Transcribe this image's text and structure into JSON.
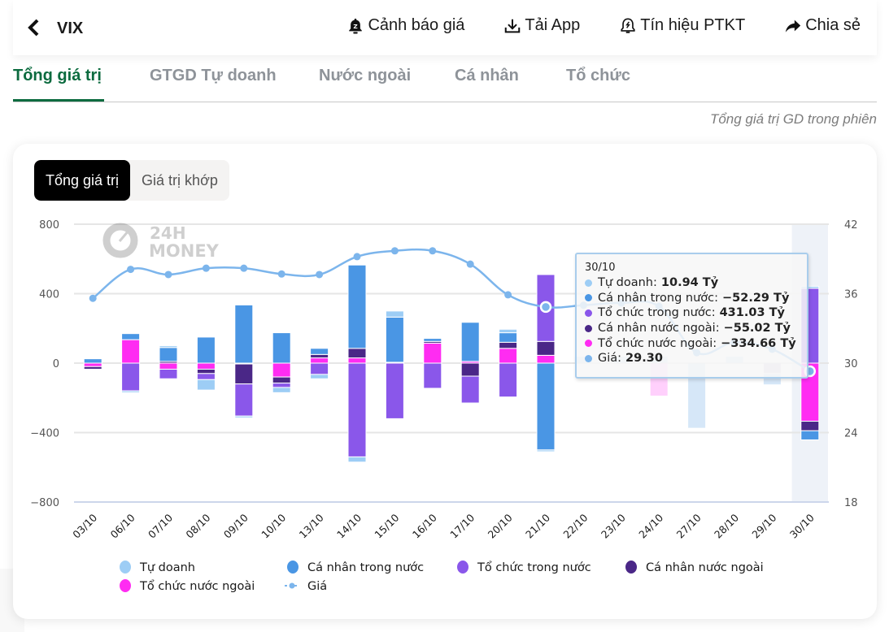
{
  "header": {
    "back_icon": "chevron-left-icon",
    "ticker": "VIX",
    "actions": [
      {
        "label": "Cảnh báo giá",
        "icon": "bell-alert-icon"
      },
      {
        "label": "Tải App",
        "icon": "download-icon"
      },
      {
        "label": "Tín hiệu PTKT",
        "icon": "signal-bell-icon"
      },
      {
        "label": "Chia sẻ",
        "icon": "share-icon"
      }
    ]
  },
  "tabs": [
    {
      "label": "Tổng giá trị",
      "active": true
    },
    {
      "label": "GTGD Tự doanh",
      "active": false
    },
    {
      "label": "Nước ngoài",
      "active": false
    },
    {
      "label": "Cá nhân",
      "active": false
    },
    {
      "label": "Tổ chức",
      "active": false
    }
  ],
  "subtitle": "Tổng giá trị GD trong phiên",
  "toggle": [
    {
      "label": "Tổng giá trị",
      "active": true
    },
    {
      "label": "Giá trị khớp",
      "active": false
    }
  ],
  "watermark": {
    "line1": "24H",
    "line2": "MONEY"
  },
  "colors": {
    "tu_doanh": "#9dcdf5",
    "ca_nhan_trong_nuoc": "#4a96e4",
    "to_chuc_trong_nuoc": "#8a57ea",
    "ca_nhan_nuoc_ngoai": "#4a2787",
    "to_chuc_nuoc_ngoai": "#ff2cf2",
    "gia": "#7cb5ec",
    "highlight_band": "#eef2f8"
  },
  "tooltip": {
    "date": "30/10",
    "rows": [
      {
        "label": "Tự doanh:",
        "value": "10.94 Tỷ",
        "color_key": "tu_doanh"
      },
      {
        "label": "Cá nhân trong nước:",
        "value": "−52.29 Tỷ",
        "color_key": "ca_nhan_trong_nuoc"
      },
      {
        "label": "Tổ chức trong nước:",
        "value": "431.03 Tỷ",
        "color_key": "to_chuc_trong_nuoc"
      },
      {
        "label": "Cá nhân nước ngoài:",
        "value": "−55.02 Tỷ",
        "color_key": "ca_nhan_nuoc_ngoai"
      },
      {
        "label": "Tổ chức nước ngoài:",
        "value": "−334.66 Tỷ",
        "color_key": "to_chuc_nuoc_ngoai"
      },
      {
        "label": "Giá:",
        "value": "29.30",
        "color_key": "gia"
      }
    ]
  },
  "chart_data": {
    "type": "bar",
    "stacked": true,
    "combo_line": true,
    "title": "",
    "xlabel": "",
    "ylabel": "",
    "categories": [
      "03/10",
      "06/10",
      "07/10",
      "08/10",
      "09/10",
      "10/10",
      "13/10",
      "14/10",
      "15/10",
      "16/10",
      "17/10",
      "20/10",
      "21/10",
      "22/10",
      "23/10",
      "24/10",
      "27/10",
      "28/10",
      "29/10",
      "30/10"
    ],
    "y_left": {
      "range": [
        -800,
        800
      ],
      "ticks": [
        "800",
        "400",
        "0",
        "−400",
        "−800"
      ],
      "tick_values": [
        800,
        400,
        0,
        -400,
        -800
      ]
    },
    "y_right": {
      "range": [
        18,
        42
      ],
      "ticks": [
        "42",
        "36",
        "30",
        "24",
        "18"
      ],
      "tick_values": [
        42,
        36,
        30,
        24,
        18
      ]
    },
    "grid": true,
    "legend_position": "bottom",
    "highlighted_category": "30/10",
    "series": [
      {
        "name": "Tự doanh",
        "key": "tu_doanh",
        "type": "bar",
        "values": [
          -3,
          -10,
          10,
          -60,
          -10,
          -30,
          -25,
          -30,
          35,
          2,
          -5,
          20,
          -10,
          0,
          0,
          0,
          0,
          0,
          0,
          10.94
        ]
      },
      {
        "name": "Cá nhân trong nước",
        "key": "ca_nhan_trong_nuoc",
        "type": "bar",
        "values": [
          25,
          35,
          80,
          150,
          335,
          175,
          35,
          480,
          260,
          20,
          225,
          55,
          -500,
          40,
          40,
          40,
          -375,
          40,
          -65,
          -52.29
        ]
      },
      {
        "name": "Tổ chức trong nước",
        "key": "to_chuc_trong_nuoc",
        "type": "bar",
        "values": [
          -3,
          -160,
          -55,
          -35,
          -185,
          -25,
          -65,
          -540,
          -320,
          -145,
          -155,
          -195,
          385,
          0,
          0,
          0,
          0,
          0,
          0,
          431.03
        ]
      },
      {
        "name": "Cá nhân nước ngoài",
        "key": "ca_nhan_nuoc_ngoai",
        "type": "bar",
        "values": [
          -15,
          0,
          10,
          -25,
          -115,
          -35,
          20,
          55,
          0,
          10,
          -75,
          35,
          80,
          0,
          0,
          0,
          0,
          0,
          -60,
          -55.02
        ]
      },
      {
        "name": "Tổ chức nước ngoài",
        "key": "to_chuc_nuoc_ngoai",
        "type": "bar",
        "values": [
          -20,
          135,
          -35,
          -35,
          -5,
          -80,
          30,
          30,
          5,
          115,
          10,
          85,
          45,
          0,
          0,
          -190,
          0,
          0,
          0,
          -334.66
        ]
      },
      {
        "name": "Giá",
        "key": "gia",
        "type": "line",
        "axis": "right",
        "values": [
          35.6,
          38.1,
          37.65,
          38.2,
          38.2,
          37.7,
          37.65,
          39.2,
          39.7,
          39.7,
          38.55,
          35.9,
          34.85,
          35.0,
          35.2,
          34.9,
          30.9,
          31.8,
          31.2,
          29.3
        ]
      }
    ]
  }
}
